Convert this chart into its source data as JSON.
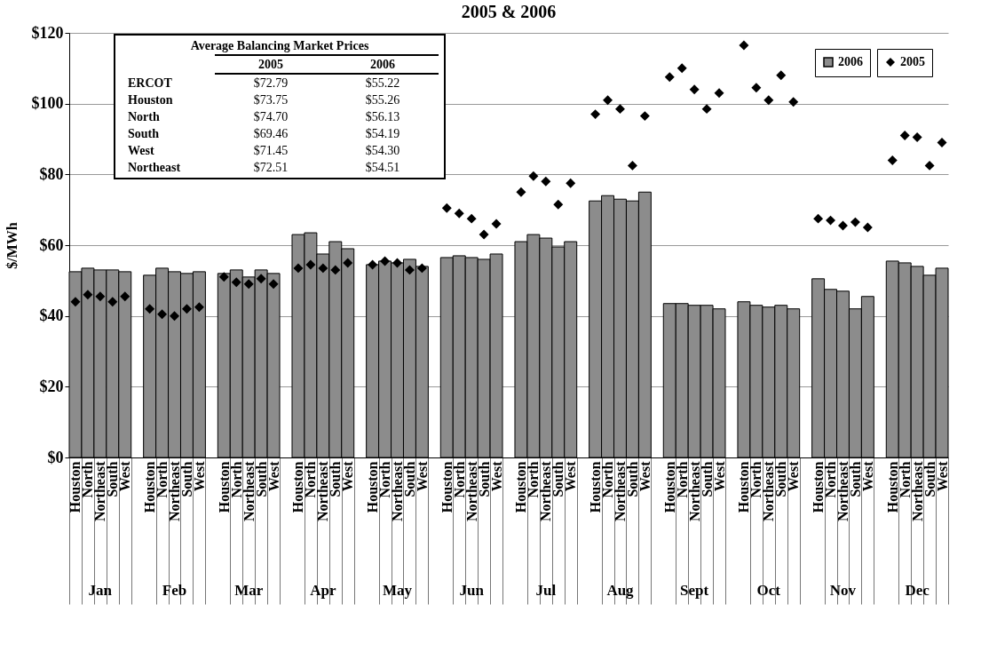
{
  "chart_data": {
    "type": "bar",
    "title": "2005 & 2006",
    "ylabel": "$/MWh",
    "categories": [
      "Houston",
      "North",
      "Northeast",
      "South",
      "West",
      "Houston",
      "North",
      "Northeast",
      "South",
      "West",
      "Houston",
      "North",
      "Northeast",
      "South",
      "West",
      "Houston",
      "North",
      "Northeast",
      "South",
      "West",
      "Houston",
      "North",
      "Northeast",
      "South",
      "West",
      "Houston",
      "North",
      "Northeast",
      "South",
      "West",
      "Houston",
      "North",
      "Northeast",
      "South",
      "West",
      "Houston",
      "North",
      "Northeast",
      "South",
      "West",
      "Houston",
      "North",
      "Northeast",
      "South",
      "West",
      "Houston",
      "North",
      "Northeast",
      "South",
      "West",
      "Houston",
      "North",
      "Northeast",
      "South",
      "West",
      "Houston",
      "North",
      "Northeast",
      "South",
      "West"
    ],
    "series": [
      {
        "name": "2006",
        "type": "bar",
        "color": "#8c8c8c",
        "values": [
          52.5,
          53.5,
          53,
          53,
          52.5,
          51.5,
          53.5,
          52.5,
          52,
          52.5,
          52,
          53,
          51,
          53,
          52,
          63,
          63.5,
          57.5,
          61,
          59,
          54.5,
          55.5,
          55,
          56,
          54,
          56.5,
          57,
          56.5,
          56,
          57.5,
          61,
          63,
          62,
          59.5,
          61,
          72.5,
          74,
          73,
          72.5,
          75,
          43.5,
          43.5,
          43,
          43,
          42,
          44,
          43,
          42.5,
          43,
          42,
          50.5,
          47.5,
          47,
          42,
          45.5,
          55.5,
          55,
          54,
          51.5,
          53.5
        ]
      },
      {
        "name": "2005",
        "type": "scatter",
        "color": "#000000",
        "values": [
          44,
          46,
          45.5,
          44,
          45.5,
          42,
          40.5,
          40,
          42,
          42.5,
          51,
          49.5,
          49,
          50.5,
          49,
          53.5,
          54.5,
          53.5,
          53,
          55,
          54.5,
          55.5,
          55,
          53,
          53.5,
          70.5,
          69,
          67.5,
          63,
          66,
          75,
          79.5,
          78,
          71.5,
          77.5,
          97,
          101,
          98.5,
          82.5,
          96.5,
          107.5,
          110,
          104,
          98.5,
          103,
          116.5,
          104.5,
          101,
          108,
          100.5,
          67.5,
          67,
          65.5,
          66.5,
          65,
          84,
          91,
          90.5,
          82.5,
          89
        ]
      }
    ],
    "marker": "diamond",
    "ylim": [
      0,
      120
    ],
    "yticks": [
      {
        "value": 0,
        "label": "$0"
      },
      {
        "value": 20,
        "label": "$20"
      },
      {
        "value": 40,
        "label": "$40"
      },
      {
        "value": 60,
        "label": "$60"
      },
      {
        "value": 80,
        "label": "$80"
      },
      {
        "value": 100,
        "label": "$100"
      },
      {
        "value": 120,
        "label": "$120"
      }
    ],
    "grid": "y",
    "legend": "top right",
    "annotations": [
      "Average Balancing Market Prices",
      "2005",
      "2006",
      "ERCOT",
      "$72.79",
      "$55.22",
      "Houston",
      "$73.75",
      "$55.26",
      "North",
      "$74.70",
      "$56.13",
      "South",
      "$69.46",
      "$54.19",
      "West",
      "$71.45",
      "$54.30",
      "Northeast",
      "$72.51",
      "$54.51",
      "Jan",
      "Feb",
      "Mar",
      "Apr",
      "May",
      "Jun",
      "Jul",
      "Aug",
      "Sept",
      "Oct",
      "Nov",
      "Dec"
    ]
  }
}
